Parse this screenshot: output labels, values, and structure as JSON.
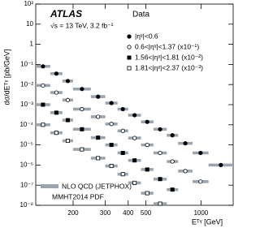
{
  "chart_data": {
    "type": "scatter",
    "experiment": "ATLAS",
    "data_label": "Data",
    "energy_label": "√s = 13 TeV, 3.2 fb⁻¹",
    "x_label": "Eᵀᵞ [GeV]",
    "y_label": "dσ/dEᵀᵞ [pb/GeV]",
    "band_label": "NLO QCD (JETPHOX)",
    "pdf_label": "MMHT2014 PDF",
    "band_color": "#9aa5ad",
    "log_x": true,
    "log_y": true,
    "xlim": [
      125,
      1500
    ],
    "xticks": [
      200,
      300,
      400,
      500,
      1000
    ],
    "ylim": [
      1e-08,
      100
    ],
    "yticks": [
      {
        "value": 1e-08,
        "label": "10⁻⁸"
      },
      {
        "value": 1e-07,
        "label": "10⁻⁷"
      },
      {
        "value": 1e-06,
        "label": "10⁻⁶"
      },
      {
        "value": 1e-05,
        "label": "10⁻⁵"
      },
      {
        "value": 0.0001,
        "label": "10⁻⁴"
      },
      {
        "value": 0.001,
        "label": "10⁻³"
      },
      {
        "value": 0.01,
        "label": "10⁻²"
      },
      {
        "value": 0.1,
        "label": "10⁻¹"
      },
      1,
      10,
      {
        "value": 100,
        "label": "10²"
      }
    ],
    "series": [
      {
        "name": "|ηᵞ|<0.6",
        "marker": "circle",
        "filled": true,
        "color": "#000000",
        "bins": [
          125,
          150,
          175,
          200,
          250,
          300,
          350,
          400,
          470,
          550,
          650,
          750,
          900,
          1100,
          1500
        ],
        "values": [
          0.08,
          0.035,
          0.015,
          0.006,
          0.0025,
          0.0012,
          0.0006,
          0.0003,
          0.00014,
          6e-05,
          3e-05,
          1.2e-05,
          4e-06,
          1e-06
        ]
      },
      {
        "name": "0.6<|ηᵞ|<1.37 (x10⁻¹)",
        "marker": "circle",
        "filled": false,
        "color": "#000000",
        "bins": [
          125,
          150,
          175,
          200,
          250,
          300,
          350,
          400,
          470,
          550,
          650,
          750,
          900,
          1100
        ],
        "values": [
          0.009,
          0.004,
          0.0017,
          0.0006,
          0.00025,
          0.00011,
          5e-05,
          2.2e-05,
          1e-05,
          4e-06,
          1.5e-06,
          5e-07,
          1.5e-07
        ]
      },
      {
        "name": "1.56<|ηᵞ|<1.81 (x10⁻²)",
        "marker": "square",
        "filled": true,
        "color": "#000000",
        "bins": [
          125,
          150,
          175,
          200,
          250,
          300,
          350,
          400,
          470,
          550,
          650,
          750
        ],
        "values": [
          0.001,
          0.0004,
          0.00017,
          6e-05,
          2.3e-05,
          1e-05,
          4e-06,
          1.7e-06,
          6e-07,
          2e-07,
          6e-08
        ]
      },
      {
        "name": "1.81<|ηᵞ|<2.37 (x10⁻³)",
        "marker": "square",
        "filled": false,
        "color": "#000000",
        "bins": [
          125,
          150,
          175,
          200,
          250,
          300,
          350,
          400,
          470,
          550,
          650
        ],
        "values": [
          0.0001,
          4e-05,
          1.6e-05,
          6e-06,
          2.2e-06,
          9e-07,
          3.5e-07,
          1.3e-07,
          4e-08,
          1.2e-08
        ]
      }
    ]
  }
}
